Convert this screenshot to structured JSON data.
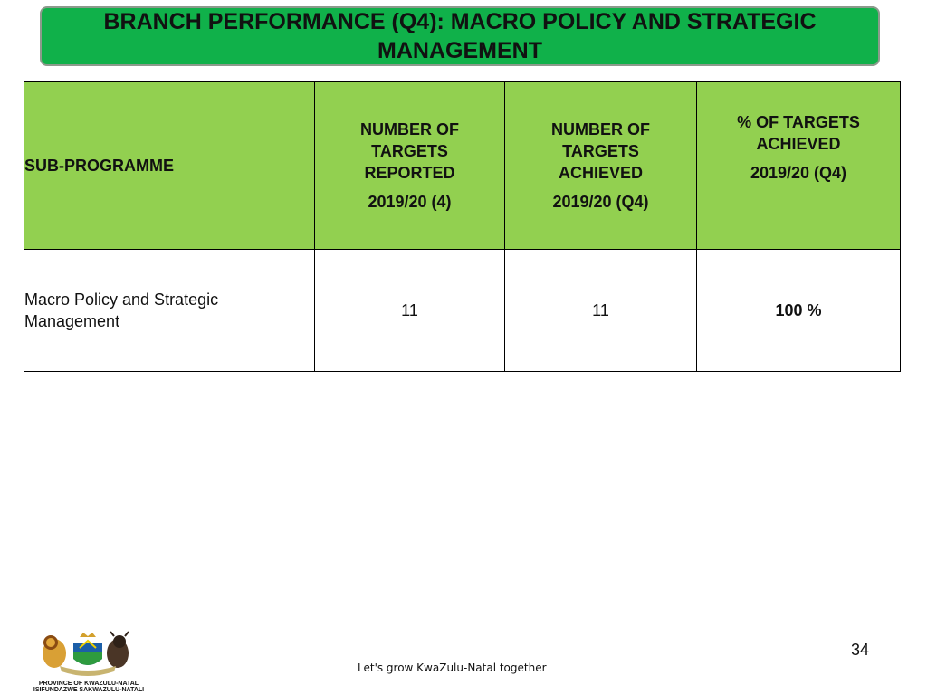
{
  "title": "BRANCH PERFORMANCE (Q4): MACRO POLICY AND STRATEGIC MANAGEMENT",
  "table": {
    "headers": {
      "sub_programme": "SUB-PROGRAMME",
      "reported_label": "NUMBER OF TARGETS REPORTED",
      "reported_year": "2019/20 (4)",
      "achieved_label": "NUMBER OF TARGETS ACHIEVED",
      "achieved_year": "2019/20 (Q4)",
      "percent_label": "% OF TARGETS ACHIEVED",
      "percent_year": "2019/20 (Q4)"
    },
    "rows": [
      {
        "sub_programme": "Macro Policy and Strategic Management",
        "reported": "11",
        "achieved": "11",
        "percent": "100 %"
      }
    ]
  },
  "logo": {
    "line1": "PROVINCE OF KWAZULU-NATAL",
    "line2": "ISIFUNDAZWE SAKWAZULU-NATALI"
  },
  "footer": {
    "tagline": "Let's grow KwaZulu-Natal together",
    "page_number": "34"
  },
  "colors": {
    "title_banner": "#10b14a",
    "header_fill": "#92d050"
  }
}
